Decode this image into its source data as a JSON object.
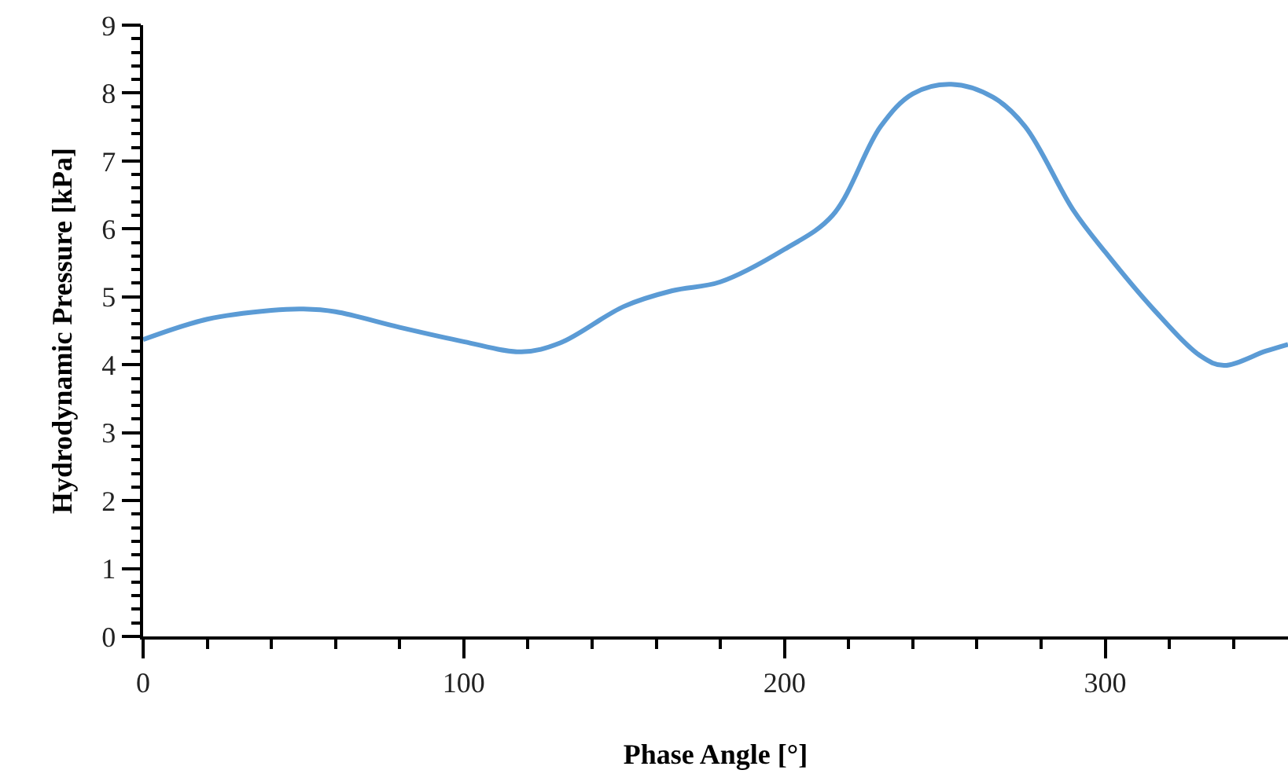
{
  "chart_data": {
    "type": "line",
    "xlabel": "Phase Angle [°]",
    "ylabel": "Hydrodynamic Pressure [kPa]",
    "x": [
      0,
      20,
      40,
      50,
      60,
      80,
      100,
      118,
      130,
      150,
      165,
      180,
      200,
      215,
      230,
      240,
      252,
      265,
      275,
      290,
      300,
      315,
      330,
      337,
      350,
      357
    ],
    "series": [
      {
        "color": "#5b9bd5",
        "values": [
          4.37,
          4.67,
          4.8,
          4.82,
          4.78,
          4.55,
          4.34,
          4.19,
          4.32,
          4.86,
          5.09,
          5.22,
          5.7,
          6.2,
          7.51,
          7.99,
          8.13,
          7.94,
          7.51,
          6.28,
          5.66,
          4.82,
          4.12,
          3.99,
          4.2,
          4.3
        ]
      }
    ],
    "xlim": [
      0,
      357
    ],
    "ylim": [
      0,
      9
    ],
    "xticks": [
      0,
      {
        "value": 20,
        "label": null
      },
      {
        "value": 40,
        "label": null
      },
      {
        "value": 60,
        "label": null
      },
      {
        "value": 80,
        "label": null
      },
      100,
      {
        "value": 120,
        "label": null
      },
      {
        "value": 140,
        "label": null
      },
      {
        "value": 160,
        "label": null
      },
      {
        "value": 180,
        "label": null
      },
      200,
      {
        "value": 220,
        "label": null
      },
      {
        "value": 240,
        "label": null
      },
      {
        "value": 260,
        "label": null
      },
      {
        "value": 280,
        "label": null
      },
      300,
      {
        "value": 320,
        "label": null
      },
      {
        "value": 340,
        "label": null
      }
    ],
    "yticks": [
      0,
      {
        "value": 0.2,
        "label": null
      },
      {
        "value": 0.4,
        "label": null
      },
      {
        "value": 0.6,
        "label": null
      },
      {
        "value": 0.8,
        "label": null
      },
      1,
      {
        "value": 1.2,
        "label": null
      },
      {
        "value": 1.4,
        "label": null
      },
      {
        "value": 1.6,
        "label": null
      },
      {
        "value": 1.8,
        "label": null
      },
      2,
      {
        "value": 2.2,
        "label": null
      },
      {
        "value": 2.4,
        "label": null
      },
      {
        "value": 2.6,
        "label": null
      },
      {
        "value": 2.8,
        "label": null
      },
      3,
      {
        "value": 3.2,
        "label": null
      },
      {
        "value": 3.4,
        "label": null
      },
      {
        "value": 3.6,
        "label": null
      },
      {
        "value": 3.8,
        "label": null
      },
      4,
      {
        "value": 4.2,
        "label": null
      },
      {
        "value": 4.4,
        "label": null
      },
      {
        "value": 4.6,
        "label": null
      },
      {
        "value": 4.8,
        "label": null
      },
      5,
      {
        "value": 5.2,
        "label": null
      },
      {
        "value": 5.4,
        "label": null
      },
      {
        "value": 5.6,
        "label": null
      },
      {
        "value": 5.8,
        "label": null
      },
      6,
      {
        "value": 6.2,
        "label": null
      },
      {
        "value": 6.4,
        "label": null
      },
      {
        "value": 6.6,
        "label": null
      },
      {
        "value": 6.8,
        "label": null
      },
      7,
      {
        "value": 7.2,
        "label": null
      },
      {
        "value": 7.4,
        "label": null
      },
      {
        "value": 7.6,
        "label": null
      },
      {
        "value": 7.8,
        "label": null
      },
      8,
      {
        "value": 8.2,
        "label": null
      },
      {
        "value": 8.4,
        "label": null
      },
      {
        "value": 8.6,
        "label": null
      },
      {
        "value": 8.8,
        "label": null
      },
      9
    ],
    "grid": false,
    "marker": "none",
    "line_style": "solid"
  }
}
